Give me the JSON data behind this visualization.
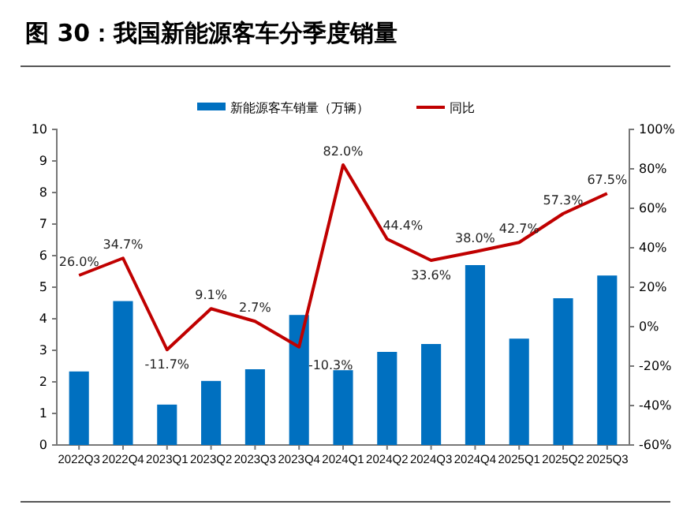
{
  "chart_data": {
    "type": "bar",
    "title": "图 30：我国新能源客车分季度销量",
    "categories": [
      "2022Q3",
      "2022Q4",
      "2023Q1",
      "2023Q2",
      "2023Q3",
      "2023Q4",
      "2024Q1",
      "2024Q2",
      "2024Q3",
      "2024Q4",
      "2025Q1",
      "2025Q2",
      "2025Q3"
    ],
    "series": [
      {
        "name": "新能源客车销量（万辆）",
        "color": "#0070c0",
        "values": [
          2.33,
          4.56,
          1.28,
          2.03,
          2.4,
          4.12,
          2.37,
          2.95,
          3.2,
          5.7,
          3.37,
          4.65,
          5.37
        ]
      },
      {
        "name": "同比",
        "type": "line",
        "axis": "y2",
        "color": "#c00000",
        "values": [
          26.0,
          34.7,
          -11.7,
          9.1,
          2.7,
          -10.3,
          82.0,
          44.4,
          33.6,
          38.0,
          42.7,
          57.3,
          67.5
        ],
        "value_labels": [
          "26.0%",
          "34.7%",
          "-11.7%",
          "9.1%",
          "2.7%",
          "-10.3%",
          "82.0%",
          "44.4%",
          "33.6%",
          "38.0%",
          "42.7%",
          "57.3%",
          "67.5%"
        ]
      }
    ],
    "ylim": [
      0,
      10
    ],
    "yticks": [
      0,
      1,
      2,
      3,
      4,
      5,
      6,
      7,
      8,
      9,
      10
    ],
    "y2lim": [
      -60,
      100
    ],
    "y2ticks": [
      {
        "value": -60,
        "label": "-60%"
      },
      {
        "value": -40,
        "label": "-40%"
      },
      {
        "value": -20,
        "label": "-20%"
      },
      {
        "value": 0,
        "label": "0%"
      },
      {
        "value": 20,
        "label": "20%"
      },
      {
        "value": 40,
        "label": "40%"
      },
      {
        "value": 60,
        "label": "60%"
      },
      {
        "value": 80,
        "label": "80%"
      },
      {
        "value": 100,
        "label": "100%"
      }
    ],
    "legend": "top",
    "marker": "none",
    "line_style": "solid"
  }
}
